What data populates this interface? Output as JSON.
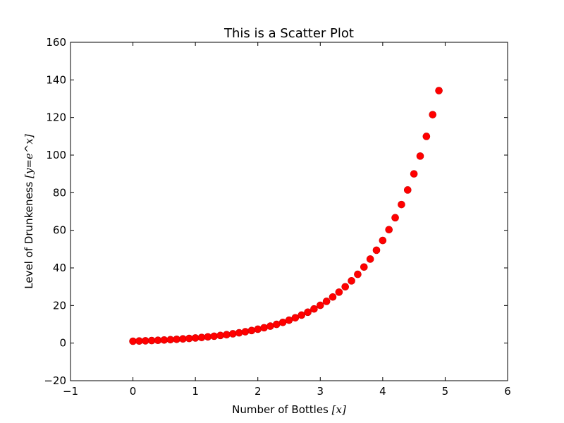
{
  "chart_data": {
    "type": "scatter",
    "title": "This is a Scatter Plot",
    "xlabel": {
      "text": "Number of Bottles ",
      "math": "[x]"
    },
    "ylabel": {
      "text": "Level of Drunkeness ",
      "math": "[y=e^x]"
    },
    "xlim": [
      -1,
      6
    ],
    "ylim": [
      -20,
      160
    ],
    "xticks": [
      -1,
      0,
      1,
      2,
      3,
      4,
      5,
      6
    ],
    "xtick_labels": [
      "−1",
      "0",
      "1",
      "2",
      "3",
      "4",
      "5",
      "6"
    ],
    "yticks": [
      -20,
      0,
      20,
      40,
      60,
      80,
      100,
      120,
      140,
      160
    ],
    "ytick_labels": [
      "−20",
      "0",
      "20",
      "40",
      "60",
      "80",
      "100",
      "120",
      "140",
      "160"
    ],
    "grid": false,
    "marker_color": "#ff0000",
    "series": [
      {
        "x": [
          0.0,
          0.1,
          0.2,
          0.3,
          0.4,
          0.5,
          0.6,
          0.7,
          0.8,
          0.9,
          1.0,
          1.1,
          1.2,
          1.3,
          1.4,
          1.5,
          1.6,
          1.7,
          1.8,
          1.9,
          2.0,
          2.1,
          2.2,
          2.3,
          2.4,
          2.5,
          2.6,
          2.7,
          2.8,
          2.9,
          3.0,
          3.1,
          3.2,
          3.3,
          3.4,
          3.5,
          3.6,
          3.7,
          3.8,
          3.9,
          4.0,
          4.1,
          4.2,
          4.3,
          4.4,
          4.5,
          4.6,
          4.7,
          4.8,
          4.9
        ],
        "y": [
          1.0,
          1.11,
          1.22,
          1.35,
          1.49,
          1.65,
          1.82,
          2.01,
          2.23,
          2.46,
          2.72,
          3.0,
          3.32,
          3.67,
          4.06,
          4.48,
          4.95,
          5.47,
          6.05,
          6.69,
          7.39,
          8.17,
          9.03,
          9.97,
          11.02,
          12.18,
          13.46,
          14.88,
          16.44,
          18.17,
          20.09,
          22.2,
          24.53,
          27.11,
          29.96,
          33.12,
          36.6,
          40.45,
          44.7,
          49.4,
          54.6,
          60.34,
          66.69,
          73.7,
          81.45,
          90.02,
          99.48,
          109.95,
          121.51,
          134.29
        ]
      }
    ]
  }
}
